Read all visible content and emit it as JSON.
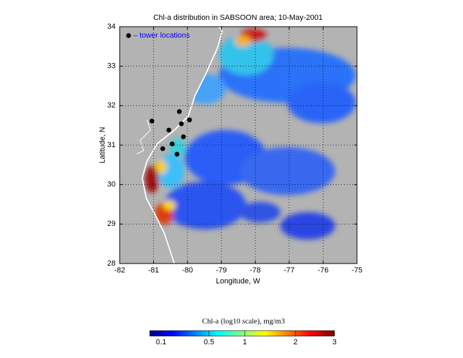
{
  "chart_data": {
    "type": "scatter",
    "title": "Chl-a distribution in SABSOON area; 10-May-2001",
    "x_label": "Longitude, W",
    "y_label": "Latitude, N",
    "xlim": [
      -82,
      -75
    ],
    "ylim": [
      28,
      34
    ],
    "xticks": [
      -82,
      -81,
      -80,
      -79,
      -78,
      -77,
      -76,
      -75
    ],
    "yticks": [
      28,
      29,
      30,
      31,
      32,
      33,
      34
    ],
    "grid": true,
    "series": [
      {
        "name": "– tower locations",
        "color": "#000000",
        "x": [
          -81.05,
          -80.55,
          -80.24,
          -80.18,
          -79.94,
          -80.12,
          -80.45,
          -80.73,
          -80.31
        ],
        "values": [
          31.61,
          31.38,
          31.85,
          31.54,
          31.64,
          31.21,
          31.03,
          30.91,
          30.77
        ]
      }
    ],
    "colorbar": {
      "label": "Chl-a (log10 scale), mg/m3",
      "scale": "sqrt",
      "lim": [
        0.05,
        3
      ],
      "ticks": [
        0.1,
        0.5,
        1,
        2,
        3
      ]
    }
  }
}
